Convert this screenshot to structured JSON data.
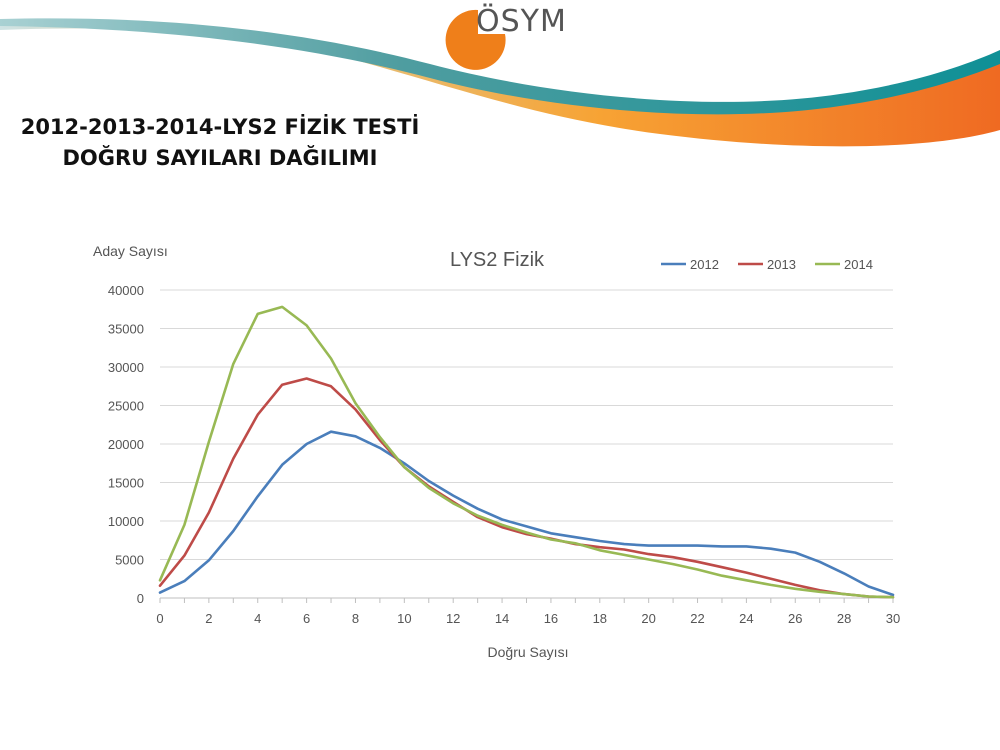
{
  "header": {
    "logo_text": "ÖSYM",
    "title_line1": "2012-2013-2014-LYS2 FİZİK TESTİ",
    "title_line2": "DOĞRU SAYILARI DAĞILIMI"
  },
  "colors": {
    "series_2012": "#4a7ebb",
    "series_2013": "#be4b48",
    "series_2014": "#98b954",
    "gridline": "#d9d9d9",
    "banner_orange": "#f39a2d",
    "banner_teal": "#1c9aa0"
  },
  "chart_data": {
    "type": "line",
    "title": "LYS2 Fizik",
    "xlabel": "Doğru Sayısı",
    "ylabel": "Aday Sayısı",
    "xlim": [
      0,
      30
    ],
    "ylim": [
      0,
      40000
    ],
    "x_ticks": [
      0,
      2,
      4,
      6,
      8,
      10,
      12,
      14,
      16,
      18,
      20,
      22,
      24,
      26,
      28,
      30
    ],
    "y_ticks": [
      0,
      5000,
      10000,
      15000,
      20000,
      25000,
      30000,
      35000,
      40000
    ],
    "grid": true,
    "legend_position": "top-right",
    "x": [
      0,
      1,
      2,
      3,
      4,
      5,
      6,
      7,
      8,
      9,
      10,
      11,
      12,
      13,
      14,
      15,
      16,
      17,
      18,
      19,
      20,
      21,
      22,
      23,
      24,
      25,
      26,
      27,
      28,
      29,
      30
    ],
    "series": [
      {
        "name": "2012",
        "values": [
          700,
          2200,
          4900,
          8700,
          13200,
          17300,
          20000,
          21600,
          21000,
          19500,
          17500,
          15200,
          13300,
          11600,
          10200,
          9300,
          8400,
          7900,
          7400,
          7000,
          6800,
          6800,
          6800,
          6700,
          6700,
          6400,
          5900,
          4700,
          3200,
          1500,
          400
        ]
      },
      {
        "name": "2013",
        "values": [
          1600,
          5500,
          11100,
          18100,
          23800,
          27700,
          28500,
          27500,
          24500,
          20500,
          17000,
          14500,
          12500,
          10500,
          9200,
          8300,
          7700,
          7000,
          6600,
          6300,
          5700,
          5300,
          4700,
          4000,
          3300,
          2500,
          1700,
          1000,
          500,
          200,
          100
        ]
      },
      {
        "name": "2014",
        "values": [
          2300,
          9500,
          20300,
          30400,
          36900,
          37800,
          35400,
          31100,
          25300,
          20900,
          17000,
          14300,
          12300,
          10700,
          9500,
          8500,
          7600,
          7100,
          6200,
          5600,
          5000,
          4400,
          3700,
          2900,
          2300,
          1700,
          1200,
          800,
          500,
          200,
          100
        ]
      }
    ]
  }
}
